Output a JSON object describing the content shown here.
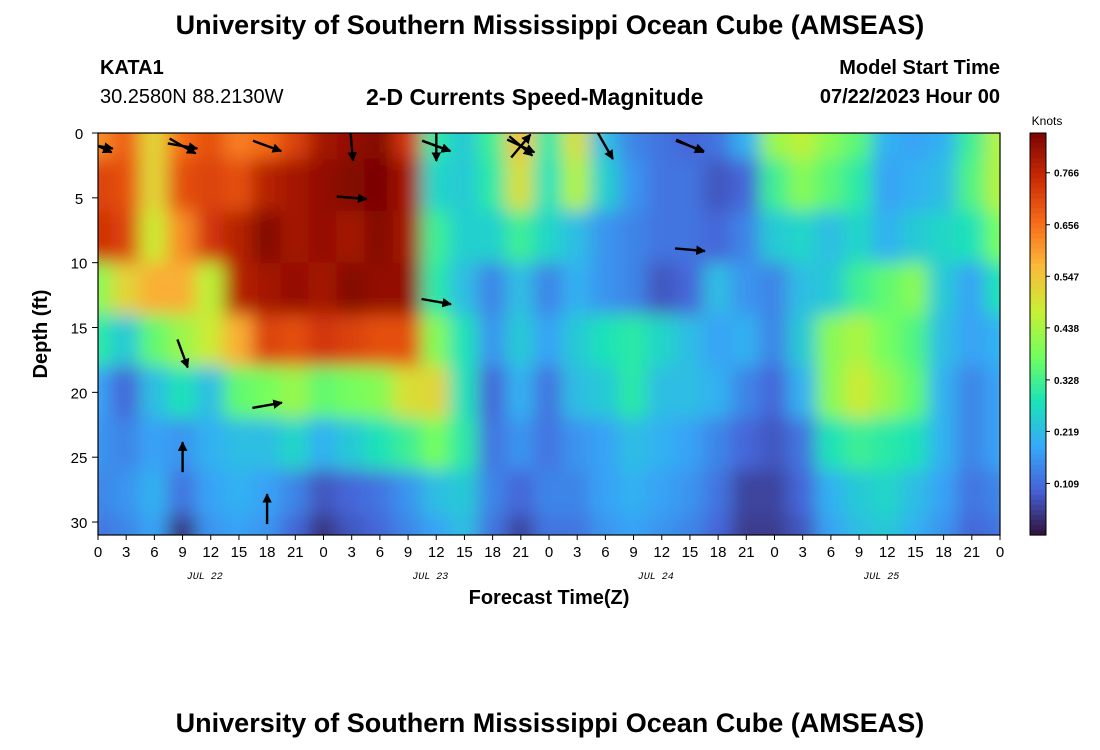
{
  "header": {
    "title": "University of Southern Mississippi Ocean Cube (AMSEAS)",
    "station": "KATA1",
    "coords": "30.2580N  88.2130W",
    "subtitle": "2-D Currents Speed-Magnitude",
    "model_start_label": "Model Start Time",
    "model_start_value": "07/22/2023 Hour 00"
  },
  "footer": {
    "title": "University of Southern Mississippi Ocean Cube (AMSEAS)"
  },
  "chart_data": {
    "type": "heatmap",
    "title": "2-D Currents Speed-Magnitude",
    "xlabel": "Forecast Time(Z)",
    "ylabel": "Depth (ft)",
    "x_tick_labels": [
      "0",
      "3",
      "6",
      "9",
      "12",
      "15",
      "18",
      "21",
      "0",
      "3",
      "6",
      "9",
      "12",
      "15",
      "18",
      "21",
      "0",
      "3",
      "6",
      "9",
      "12",
      "15",
      "18",
      "21",
      "0",
      "3",
      "6",
      "9",
      "12",
      "15",
      "18",
      "21",
      "0"
    ],
    "date_labels": [
      "JUL 22",
      "JUL 23",
      "JUL 24",
      "JUL 25"
    ],
    "y_ticks": [
      0,
      5,
      10,
      15,
      20,
      25,
      30
    ],
    "ylim": [
      0,
      31
    ],
    "y_inverted": true,
    "colorbar": {
      "label": "Knots",
      "ticks": [
        0.109,
        0.219,
        0.328,
        0.438,
        0.547,
        0.656,
        0.766
      ],
      "range": [
        0.0,
        0.85
      ],
      "colors": [
        "#30123b",
        "#4662d7",
        "#36aaf9",
        "#1ae4b6",
        "#72fe5e",
        "#c8ef34",
        "#faba39",
        "#f66b19",
        "#ca2a04",
        "#7a0403"
      ]
    },
    "depth_levels_ft": [
      0,
      4,
      8,
      12,
      16,
      20,
      24,
      28,
      31
    ],
    "time_columns": 33,
    "speed_knots": [
      [
        0.62,
        0.68,
        0.52,
        0.66,
        0.7,
        0.64,
        0.66,
        0.72,
        0.8,
        0.82,
        0.84,
        0.74,
        0.3,
        0.24,
        0.32,
        0.55,
        0.3,
        0.5,
        0.22,
        0.14,
        0.12,
        0.1,
        0.12,
        0.2,
        0.42,
        0.46,
        0.4,
        0.35,
        0.2,
        0.18,
        0.2,
        0.32,
        0.45
      ],
      [
        0.72,
        0.7,
        0.52,
        0.7,
        0.72,
        0.7,
        0.78,
        0.8,
        0.82,
        0.84,
        0.86,
        0.8,
        0.26,
        0.24,
        0.3,
        0.5,
        0.28,
        0.45,
        0.25,
        0.16,
        0.12,
        0.12,
        0.08,
        0.1,
        0.32,
        0.4,
        0.35,
        0.3,
        0.18,
        0.2,
        0.22,
        0.34,
        0.45
      ],
      [
        0.75,
        0.72,
        0.48,
        0.62,
        0.74,
        0.78,
        0.84,
        0.8,
        0.82,
        0.8,
        0.84,
        0.8,
        0.32,
        0.25,
        0.25,
        0.32,
        0.26,
        0.22,
        0.16,
        0.14,
        0.12,
        0.12,
        0.1,
        0.14,
        0.24,
        0.26,
        0.22,
        0.26,
        0.2,
        0.24,
        0.26,
        0.28,
        0.38
      ],
      [
        0.4,
        0.52,
        0.58,
        0.58,
        0.46,
        0.78,
        0.8,
        0.82,
        0.8,
        0.84,
        0.82,
        0.82,
        0.3,
        0.22,
        0.14,
        0.22,
        0.14,
        0.2,
        0.16,
        0.14,
        0.08,
        0.1,
        0.22,
        0.16,
        0.14,
        0.22,
        0.24,
        0.32,
        0.36,
        0.4,
        0.24,
        0.18,
        0.28
      ],
      [
        0.3,
        0.24,
        0.36,
        0.42,
        0.48,
        0.58,
        0.72,
        0.7,
        0.74,
        0.72,
        0.7,
        0.7,
        0.4,
        0.28,
        0.16,
        0.24,
        0.18,
        0.24,
        0.28,
        0.3,
        0.26,
        0.22,
        0.18,
        0.2,
        0.14,
        0.24,
        0.4,
        0.44,
        0.38,
        0.34,
        0.22,
        0.18,
        0.2
      ],
      [
        0.18,
        0.1,
        0.22,
        0.28,
        0.22,
        0.36,
        0.38,
        0.42,
        0.36,
        0.38,
        0.4,
        0.5,
        0.52,
        0.28,
        0.1,
        0.2,
        0.12,
        0.22,
        0.24,
        0.3,
        0.22,
        0.22,
        0.2,
        0.14,
        0.1,
        0.2,
        0.4,
        0.48,
        0.42,
        0.36,
        0.2,
        0.14,
        0.18
      ],
      [
        0.16,
        0.14,
        0.18,
        0.16,
        0.2,
        0.22,
        0.22,
        0.26,
        0.2,
        0.24,
        0.28,
        0.32,
        0.38,
        0.3,
        0.12,
        0.16,
        0.12,
        0.16,
        0.18,
        0.22,
        0.2,
        0.18,
        0.14,
        0.1,
        0.08,
        0.12,
        0.28,
        0.32,
        0.3,
        0.28,
        0.2,
        0.14,
        0.18
      ],
      [
        0.14,
        0.16,
        0.2,
        0.12,
        0.18,
        0.2,
        0.18,
        0.14,
        0.08,
        0.1,
        0.12,
        0.16,
        0.22,
        0.24,
        0.14,
        0.1,
        0.14,
        0.14,
        0.18,
        0.2,
        0.18,
        0.16,
        0.12,
        0.06,
        0.06,
        0.1,
        0.2,
        0.24,
        0.26,
        0.22,
        0.18,
        0.12,
        0.14
      ],
      [
        0.12,
        0.14,
        0.18,
        0.04,
        0.16,
        0.18,
        0.16,
        0.1,
        0.04,
        0.08,
        0.1,
        0.14,
        0.18,
        0.22,
        0.12,
        0.06,
        0.12,
        0.12,
        0.16,
        0.18,
        0.16,
        0.14,
        0.1,
        0.05,
        0.05,
        0.08,
        0.18,
        0.22,
        0.24,
        0.2,
        0.16,
        0.1,
        0.12
      ]
    ],
    "current_vectors": [
      {
        "t": 3,
        "d": 0,
        "speed": 0.62,
        "direction_deg": 120
      },
      {
        "t": 6,
        "d": 0,
        "speed": 0.66,
        "direction_deg": 110
      },
      {
        "t": 12,
        "d": 0,
        "speed": 0.68,
        "direction_deg": 110
      },
      {
        "t": 15,
        "d": 0,
        "speed": 0.66,
        "direction_deg": 115
      },
      {
        "t": 21,
        "d": 0,
        "speed": 0.74,
        "direction_deg": 115
      },
      {
        "t": 0,
        "d": 0,
        "speed": 0.8,
        "direction_deg": 100
      },
      {
        "t": 3,
        "d": 0,
        "speed": 0.82,
        "direction_deg": 100
      },
      {
        "t": 12,
        "d": 0,
        "speed": 0.8,
        "direction_deg": 110
      },
      {
        "t": 15,
        "d": 0,
        "speed": 0.3,
        "direction_deg": 130
      },
      {
        "t": 18,
        "d": 0,
        "speed": 0.3,
        "direction_deg": 150
      },
      {
        "t": 21,
        "d": 0,
        "speed": 0.32,
        "direction_deg": 110
      },
      {
        "t": 0,
        "d": 0,
        "speed": 0.34,
        "direction_deg": 115
      },
      {
        "t": 9,
        "d": 0,
        "speed": 0.14,
        "direction_deg": 175
      },
      {
        "t": 12,
        "d": 0,
        "speed": 0.12,
        "direction_deg": 180
      },
      {
        "t": 15,
        "d": 0,
        "speed": 0.14,
        "direction_deg": 40
      },
      {
        "t": 9,
        "d": 4,
        "speed": 0.7,
        "direction_deg": 95
      },
      {
        "t": 21,
        "d": 8,
        "speed": 0.8,
        "direction_deg": 95
      },
      {
        "t": 12,
        "d": 12,
        "speed": 0.78,
        "direction_deg": 100
      },
      {
        "t": 3,
        "d": 16,
        "speed": 0.3,
        "direction_deg": 160
      },
      {
        "t": 6,
        "d": 20,
        "speed": 0.42,
        "direction_deg": 80
      },
      {
        "t": 3,
        "d": 24,
        "speed": 0.16,
        "direction_deg": 0
      },
      {
        "t": 6,
        "d": 28,
        "speed": 0.12,
        "direction_deg": 0
      }
    ]
  }
}
